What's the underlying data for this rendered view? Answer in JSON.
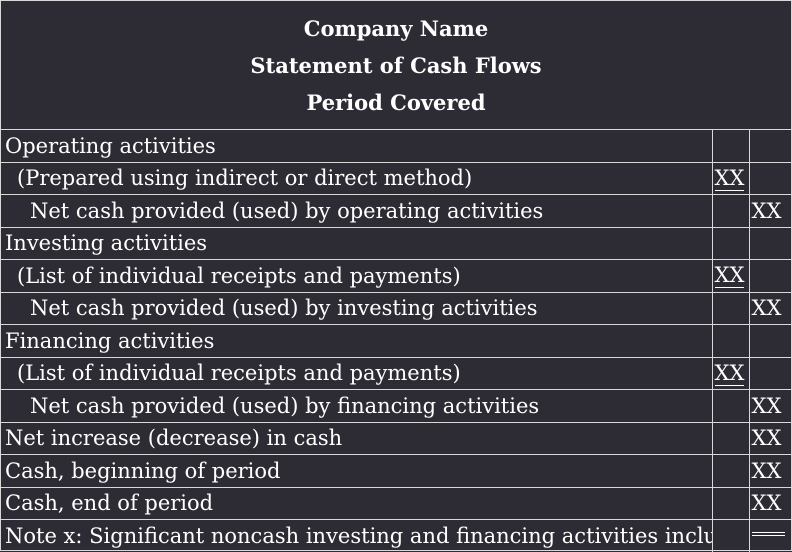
{
  "header": {
    "company": "Company Name",
    "statement": "Statement of Cash Flows",
    "period": "Period Covered"
  },
  "rows": [
    {
      "label": "Operating activities",
      "a": "",
      "b": ""
    },
    {
      "label": "(Prepared using indirect or direct method)",
      "a": "XX",
      "b": ""
    },
    {
      "label": "Net cash provided (used) by operating activities",
      "a": "",
      "b": "XX"
    },
    {
      "label": "Investing activities",
      "a": "",
      "b": ""
    },
    {
      "label": "(List of individual receipts and payments)",
      "a": "XX",
      "b": ""
    },
    {
      "label": "Net cash provided (used) by investing activities",
      "a": "",
      "b": "XX"
    },
    {
      "label": "Financing activities",
      "a": "",
      "b": ""
    },
    {
      "label": "(List of individual receipts and payments)",
      "a": "XX",
      "b": ""
    },
    {
      "label": "Net cash provided (used) by financing activities",
      "a": "",
      "b": "XX"
    },
    {
      "label": "Net increase (decrease) in cash",
      "a": "",
      "b": "XX"
    },
    {
      "label": "Cash, beginning of period",
      "a": "",
      "b": "XX"
    },
    {
      "label": "Cash, end of period",
      "a": "",
      "b": "XX"
    },
    {
      "label": "Note x: Significant noncash investing and financing activities include ...",
      "a": "",
      "b": ""
    }
  ]
}
